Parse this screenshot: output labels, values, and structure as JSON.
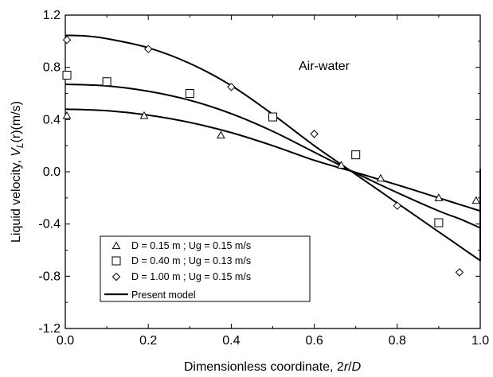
{
  "chart_data": {
    "type": "scatter",
    "title": "",
    "annotation": "Air-water",
    "xlabel": "Dimensionless coordinate, 2r/D",
    "xlabel_parts": {
      "prefix": "Dimensionless coordinate, 2",
      "italic_r": "r",
      "slash": "/",
      "italic_D": "D"
    },
    "ylabel": "Liquid velocity, VL(r)(m/s)",
    "ylabel_parts": {
      "prefix": "Liquid velocity, ",
      "italic_V": "V",
      "sub_L": "L",
      "suffix": "(r)(m/s)"
    },
    "xlim": [
      0.0,
      1.0
    ],
    "ylim": [
      -1.2,
      1.2
    ],
    "xticks": [
      0.0,
      0.2,
      0.4,
      0.6,
      0.8,
      1.0
    ],
    "xtick_labels": [
      "0.0",
      "0.2",
      "0.4",
      "0.6",
      "0.8",
      "1.0"
    ],
    "yticks": [
      -1.2,
      -0.8,
      -0.4,
      0.0,
      0.4,
      0.8,
      1.2
    ],
    "ytick_labels": [
      "-1.2",
      "-0.8",
      "-0.4",
      "0.0",
      "0.4",
      "0.8",
      "1.2"
    ],
    "grid": false,
    "legend_position": "bottom-left",
    "series": [
      {
        "name": "D = 0.15 m ; Ug = 0.15 m/s",
        "marker": "triangle",
        "x": [
          0.0,
          0.19,
          0.375,
          0.665,
          0.76,
          0.9,
          0.99
        ],
        "y": [
          0.43,
          0.43,
          0.28,
          0.05,
          -0.05,
          -0.2,
          -0.22
        ]
      },
      {
        "name": "D = 0.40 m ; Ug = 0.13 m/s",
        "marker": "square",
        "x": [
          0.0,
          0.1,
          0.3,
          0.5,
          0.7,
          0.9
        ],
        "y": [
          0.74,
          0.69,
          0.6,
          0.42,
          0.13,
          -0.39
        ]
      },
      {
        "name": "D = 1.00 m ; Ug = 0.15 m/s",
        "marker": "diamond",
        "x": [
          0.0,
          0.2,
          0.4,
          0.6,
          0.8,
          0.95
        ],
        "y": [
          1.01,
          0.94,
          0.65,
          0.29,
          -0.26,
          -0.77
        ]
      },
      {
        "name": "Present model",
        "marker": "line",
        "curves": [
          {
            "x": [
              0.0,
              0.1,
              0.2,
              0.3,
              0.4,
              0.5,
              0.6,
              0.7,
              0.8,
              0.9,
              0.95,
              1.0
            ],
            "y": [
              0.48,
              0.468,
              0.434,
              0.378,
              0.3,
              0.2,
              0.088,
              -0.005,
              -0.1,
              -0.2,
              -0.25,
              -0.3
            ]
          },
          {
            "x": [
              0.0,
              0.1,
              0.2,
              0.3,
              0.4,
              0.5,
              0.6,
              0.7,
              0.8,
              0.9,
              0.95,
              1.0
            ],
            "y": [
              0.67,
              0.658,
              0.617,
              0.548,
              0.445,
              0.31,
              0.15,
              -0.01,
              -0.16,
              -0.3,
              -0.36,
              -0.43
            ]
          },
          {
            "x": [
              0.0,
              0.05,
              0.1,
              0.2,
              0.3,
              0.4,
              0.5,
              0.6,
              0.7,
              0.8,
              0.9,
              0.95,
              1.0
            ],
            "y": [
              1.045,
              1.04,
              1.02,
              0.95,
              0.83,
              0.66,
              0.44,
              0.2,
              -0.02,
              -0.24,
              -0.46,
              -0.57,
              -0.68
            ]
          },
          {
            "x": [
              1.0,
              1.0
            ],
            "y": [
              0.02,
              -0.68
            ]
          }
        ]
      }
    ]
  }
}
